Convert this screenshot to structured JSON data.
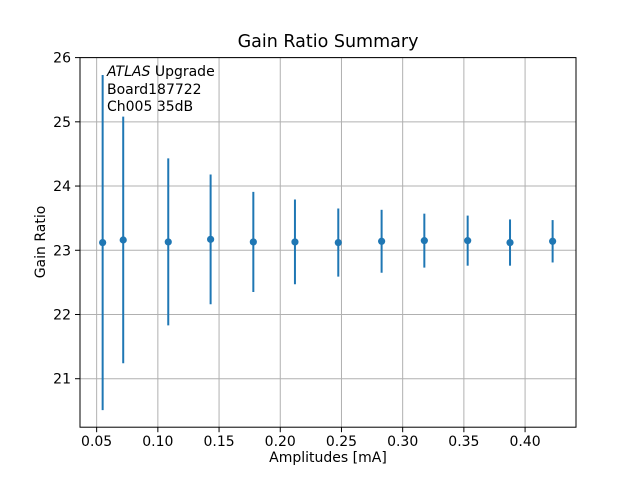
{
  "chart_data": {
    "type": "scatter",
    "title": "Gain Ratio Summary",
    "xlabel": "Amplitudes [mA]",
    "ylabel": "Gain Ratio",
    "xlim": [
      0.0364,
      0.4416
    ],
    "ylim": [
      20.245,
      26.0
    ],
    "grid": true,
    "grid_color": "#b0b0b0",
    "axis_color": "#000000",
    "background_color": "#ffffff",
    "legend": "none",
    "xticks": [
      {
        "value": 0.05,
        "label": "0.05"
      },
      {
        "value": 0.1,
        "label": "0.10"
      },
      {
        "value": 0.15,
        "label": "0.15"
      },
      {
        "value": 0.2,
        "label": "0.20"
      },
      {
        "value": 0.25,
        "label": "0.25"
      },
      {
        "value": 0.3,
        "label": "0.30"
      },
      {
        "value": 0.35,
        "label": "0.35"
      },
      {
        "value": 0.4,
        "label": "0.40"
      }
    ],
    "yticks": [
      {
        "value": 21,
        "label": "21"
      },
      {
        "value": 22,
        "label": "22"
      },
      {
        "value": 23,
        "label": "23"
      },
      {
        "value": 24,
        "label": "24"
      },
      {
        "value": 25,
        "label": "25"
      },
      {
        "value": 26,
        "label": "26"
      }
    ],
    "series": [
      {
        "name": "gain-ratio-errorbar",
        "color": "#1f77b4",
        "marker": "circle",
        "x": [
          0.0549,
          0.0717,
          0.1085,
          0.1431,
          0.178,
          0.212,
          0.2474,
          0.2828,
          0.3177,
          0.3531,
          0.3877,
          0.4225
        ],
        "y": [
          23.12,
          23.16,
          23.13,
          23.17,
          23.13,
          23.13,
          23.12,
          23.14,
          23.15,
          23.15,
          23.12,
          23.14
        ],
        "yerr": [
          2.61,
          1.92,
          1.3,
          1.01,
          0.78,
          0.66,
          0.53,
          0.49,
          0.42,
          0.39,
          0.36,
          0.33
        ]
      }
    ],
    "annotation": {
      "line1_italic": "ATLAS",
      "line1_rest": " Upgrade",
      "line2": "Board187722",
      "line3": "Ch005 35dB"
    }
  }
}
